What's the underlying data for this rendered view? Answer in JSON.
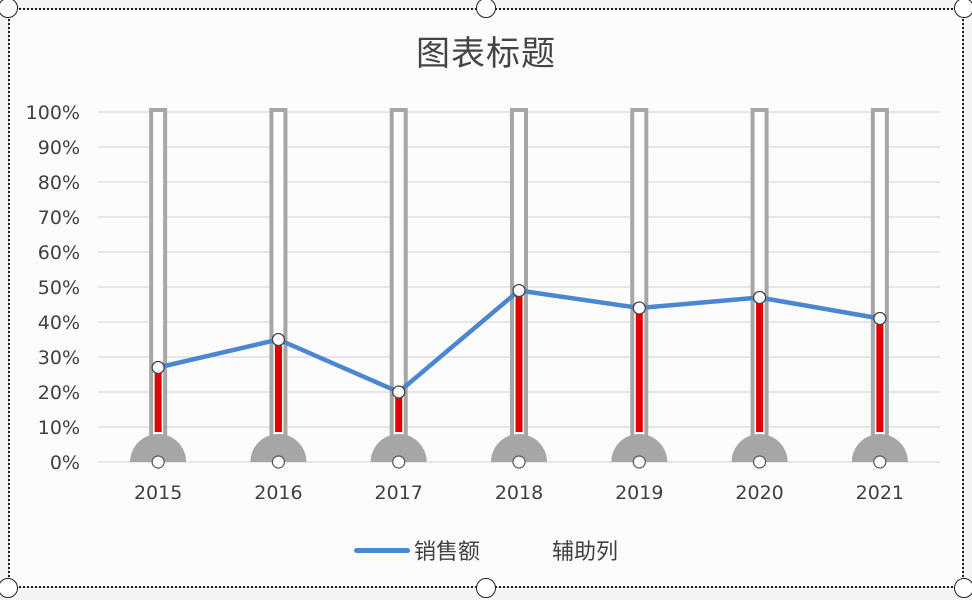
{
  "chart_data": {
    "type": "line",
    "title": "图表标题",
    "xlabel": "",
    "ylabel": "",
    "categories": [
      "2015",
      "2016",
      "2017",
      "2018",
      "2019",
      "2020",
      "2021"
    ],
    "series": [
      {
        "name": "销售额",
        "type": "line",
        "color": "#4a86d1",
        "values": [
          0.27,
          0.35,
          0.2,
          0.49,
          0.44,
          0.47,
          0.41
        ]
      },
      {
        "name": "辅助列",
        "type": "bar (thermometer outline)",
        "color": "#a6a6a6",
        "values": [
          1.0,
          1.0,
          1.0,
          1.0,
          1.0,
          1.0,
          1.0
        ]
      }
    ],
    "fill_color": "#e00000",
    "ylim": [
      0,
      1
    ],
    "yticks": [
      "0%",
      "10%",
      "20%",
      "30%",
      "40%",
      "50%",
      "60%",
      "70%",
      "80%",
      "90%",
      "100%"
    ],
    "grid": true,
    "legend_position": "bottom"
  },
  "legend": {
    "items": [
      {
        "label": "销售额",
        "color": "#4a86d1"
      },
      {
        "label": "辅助列"
      }
    ]
  }
}
